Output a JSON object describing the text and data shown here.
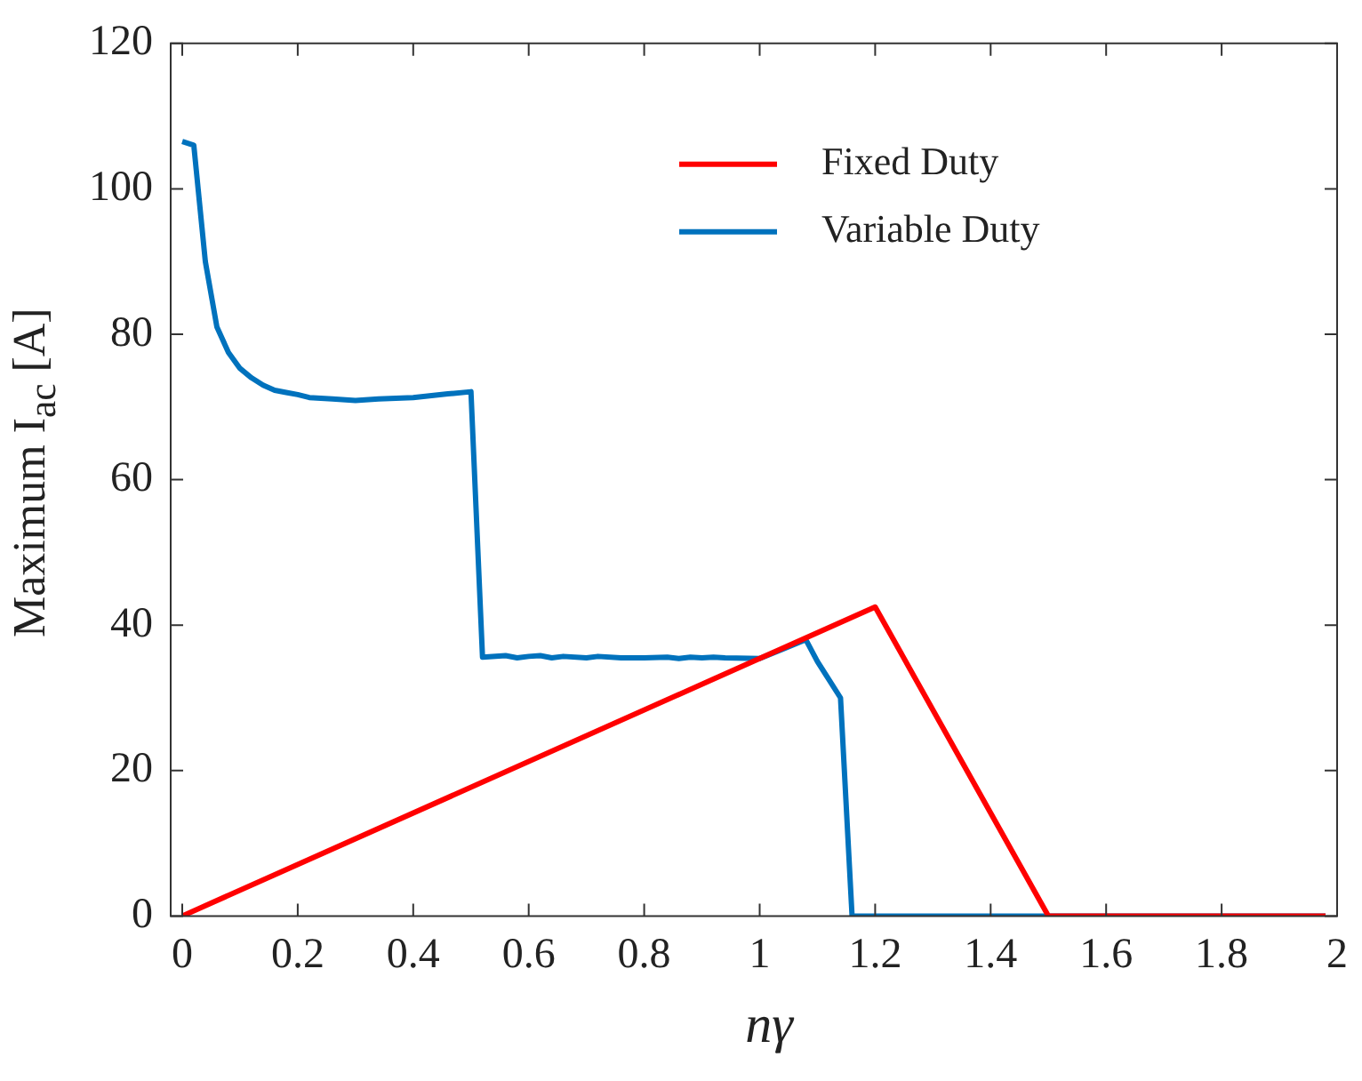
{
  "chart_data": {
    "type": "line",
    "xlabel": "nγ",
    "ylabel": "Maximum I$_{ac}$ [A]",
    "xlim": [
      -0.02,
      2
    ],
    "xticks": [
      0,
      0.2,
      0.4,
      0.6,
      0.8,
      1,
      1.2,
      1.4,
      1.6,
      1.8,
      2
    ],
    "ylim": [
      0,
      120
    ],
    "yticks": [
      0,
      20,
      40,
      60,
      80,
      100,
      120
    ],
    "grid": false,
    "legend": "top right",
    "marker": "none",
    "line_style": "solid",
    "series": [
      {
        "name": "Fixed Duty",
        "color": "#ff0000",
        "x": [
          0,
          1.2,
          1.5,
          1.98
        ],
        "values": [
          0,
          42.5,
          0,
          0
        ]
      },
      {
        "name": "Variable Duty",
        "color": "#0072bd",
        "x": [
          0,
          0.02,
          0.04,
          0.06,
          0.08,
          0.1,
          0.12,
          0.14,
          0.16,
          0.18,
          0.2,
          0.22,
          0.26,
          0.3,
          0.34,
          0.4,
          0.46,
          0.5,
          0.52,
          0.56,
          0.58,
          0.6,
          0.62,
          0.64,
          0.66,
          0.7,
          0.72,
          0.76,
          0.8,
          0.84,
          0.86,
          0.88,
          0.9,
          0.92,
          0.94,
          1.0,
          1.04,
          1.08,
          1.1,
          1.14,
          1.16,
          1.98
        ],
        "values": [
          106.5,
          106,
          90,
          81,
          77.5,
          75.3,
          74,
          73,
          72.3,
          72,
          71.7,
          71.3,
          71.1,
          70.9,
          71.1,
          71.3,
          71.8,
          72.1,
          35.6,
          35.8,
          35.5,
          35.7,
          35.8,
          35.5,
          35.7,
          35.5,
          35.7,
          35.5,
          35.5,
          35.6,
          35.4,
          35.6,
          35.5,
          35.6,
          35.5,
          35.4,
          36.7,
          38,
          35,
          30,
          0,
          0
        ]
      }
    ]
  }
}
